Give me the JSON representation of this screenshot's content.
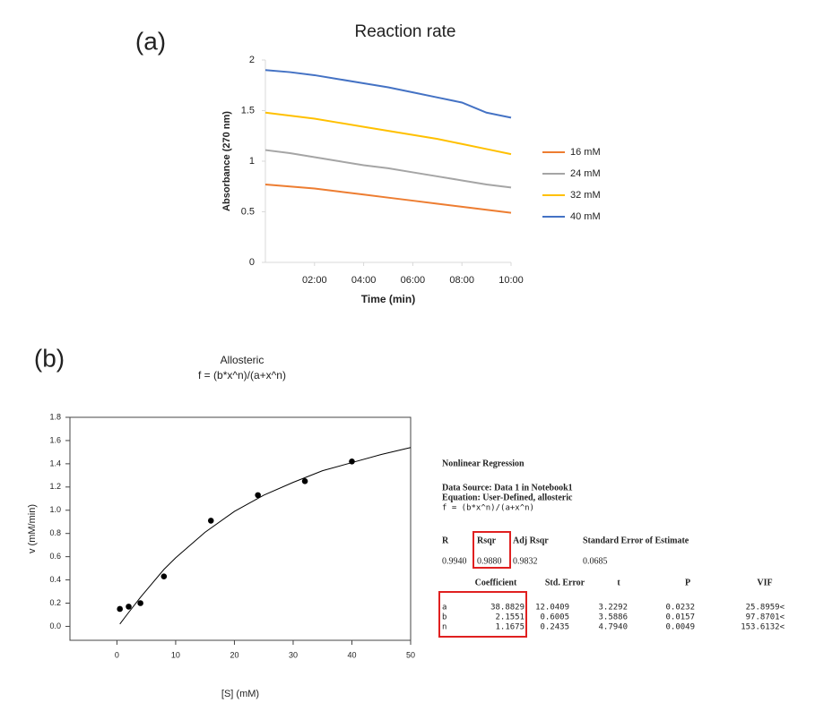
{
  "chart_data": [
    {
      "type": "line",
      "panel": "(a)",
      "title": "Reaction rate",
      "x_label": "Time (min)",
      "y_label": "Absorbance  (270 nm)",
      "x": [
        0,
        1,
        2,
        3,
        4,
        5,
        6,
        7,
        8,
        9,
        10
      ],
      "xlim": [
        0,
        10
      ],
      "xticks": [
        {
          "value": 2,
          "label": "02:00"
        },
        {
          "value": 4,
          "label": "04:00"
        },
        {
          "value": 6,
          "label": "06:00"
        },
        {
          "value": 8,
          "label": "08:00"
        },
        {
          "value": 10,
          "label": "10:00"
        }
      ],
      "ylim": [
        0,
        2
      ],
      "yticks": [
        0,
        0.5,
        1,
        1.5,
        2
      ],
      "legend": "right",
      "series": [
        {
          "name": "16 mM",
          "color": "#ed7d31",
          "values": [
            0.77,
            0.75,
            0.73,
            0.7,
            0.67,
            0.64,
            0.61,
            0.58,
            0.55,
            0.52,
            0.49
          ]
        },
        {
          "name": "24 mM",
          "color": "#a5a5a5",
          "values": [
            1.11,
            1.08,
            1.04,
            1.0,
            0.96,
            0.93,
            0.89,
            0.85,
            0.81,
            0.77,
            0.74
          ]
        },
        {
          "name": "32 mM",
          "color": "#ffc000",
          "values": [
            1.48,
            1.45,
            1.42,
            1.38,
            1.34,
            1.3,
            1.26,
            1.22,
            1.17,
            1.12,
            1.07
          ]
        },
        {
          "name": "40 mM",
          "color": "#4472c4",
          "values": [
            1.9,
            1.88,
            1.85,
            1.81,
            1.77,
            1.73,
            1.68,
            1.63,
            1.58,
            1.48,
            1.43
          ]
        }
      ]
    },
    {
      "type": "scatter",
      "panel": "(b)",
      "title": "Allosteric",
      "subtitle": "f = (b*x^n)/(a+x^n)",
      "x_label": "[S] (mM)",
      "y_label": "v (mM/min)",
      "xlim": [
        -8,
        50
      ],
      "xticks": [
        0,
        10,
        20,
        30,
        40,
        50
      ],
      "ylim": [
        -0.12,
        1.8
      ],
      "yticks": [
        {
          "value": 0,
          "label": "0.0"
        },
        0.2,
        0.4,
        0.6,
        0.8,
        {
          "value": 1,
          "label": "1.0"
        },
        1.2,
        1.4,
        1.6,
        1.8
      ],
      "series": [
        {
          "color": "#000000",
          "x": [
            0.5,
            2,
            4,
            8,
            16,
            24,
            32,
            40
          ],
          "values": [
            0.15,
            0.17,
            0.2,
            0.43,
            0.91,
            1.13,
            1.25,
            1.42
          ]
        },
        {
          "type": "line",
          "color": "#000000",
          "x": [
            0.5,
            2,
            4,
            6,
            8,
            10,
            15,
            20,
            25,
            30,
            35,
            40,
            45,
            50
          ],
          "values": [
            0.02,
            0.12,
            0.25,
            0.37,
            0.49,
            0.59,
            0.81,
            0.99,
            1.13,
            1.24,
            1.34,
            1.41,
            1.48,
            1.54
          ]
        }
      ]
    }
  ],
  "regression": {
    "title": "Nonlinear Regression",
    "data_source": "Data Source: Data 1 in Notebook1",
    "equation": "Equation: User-Defined, allosteric",
    "formula": "f = (b*x^n)/(a+x^n)",
    "stats_header": [
      "R",
      "Rsqr",
      "Adj Rsqr",
      "Standard Error of Estimate"
    ],
    "stats_values": [
      "0.9940",
      "0.9880",
      "0.9832",
      "0.0685"
    ],
    "coef_header": [
      "Coefficient",
      "Std. Error",
      "t",
      "P",
      "VIF"
    ],
    "coef_rows": [
      [
        "a",
        "38.8829",
        "12.0409",
        "3.2292",
        "0.0232",
        "25.8959<"
      ],
      [
        "b",
        "2.1551",
        "0.6005",
        "3.5886",
        "0.0157",
        "97.8701<"
      ],
      [
        "n",
        "1.1675",
        "0.2435",
        "4.7940",
        "0.0049",
        "153.6132<"
      ]
    ]
  }
}
